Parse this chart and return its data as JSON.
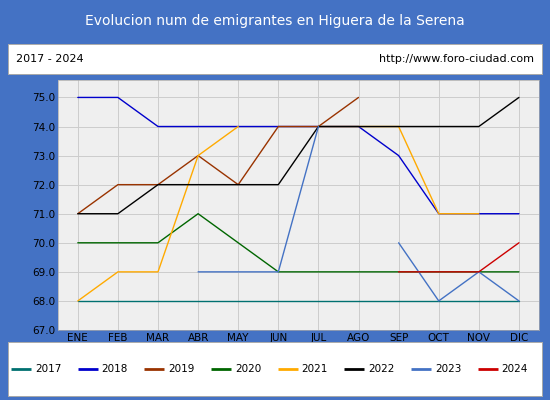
{
  "title": "Evolucion num de emigrantes en Higuera de la Serena",
  "title_color": "#ffffff",
  "title_bg": "#4472c4",
  "subtitle_left": "2017 - 2024",
  "subtitle_right": "http://www.foro-ciudad.com",
  "months": [
    "ENE",
    "FEB",
    "MAR",
    "ABR",
    "MAY",
    "JUN",
    "JUL",
    "AGO",
    "SEP",
    "OCT",
    "NOV",
    "DIC"
  ],
  "ylim": [
    67.0,
    75.6
  ],
  "yticks": [
    67.0,
    68.0,
    69.0,
    70.0,
    71.0,
    72.0,
    73.0,
    74.0,
    75.0
  ],
  "series": [
    {
      "label": "2017",
      "color": "#007070",
      "data": [
        68.0,
        68.0,
        68.0,
        68.0,
        68.0,
        68.0,
        68.0,
        68.0,
        68.0,
        68.0,
        68.0,
        68.0
      ]
    },
    {
      "label": "2018",
      "color": "#0000cc",
      "data": [
        75.0,
        75.0,
        74.0,
        74.0,
        74.0,
        74.0,
        74.0,
        74.0,
        73.0,
        71.0,
        71.0,
        71.0
      ]
    },
    {
      "label": "2019",
      "color": "#993300",
      "data": [
        71.0,
        72.0,
        72.0,
        73.0,
        72.0,
        74.0,
        74.0,
        75.0,
        null,
        null,
        null,
        null
      ]
    },
    {
      "label": "2020",
      "color": "#006600",
      "data": [
        70.0,
        70.0,
        70.0,
        71.0,
        70.0,
        69.0,
        69.0,
        69.0,
        69.0,
        69.0,
        69.0,
        69.0
      ]
    },
    {
      "label": "2021",
      "color": "#ffaa00",
      "data": [
        68.0,
        69.0,
        69.0,
        73.0,
        74.0,
        null,
        74.0,
        74.0,
        74.0,
        71.0,
        71.0,
        null
      ]
    },
    {
      "label": "2022",
      "color": "#000000",
      "data": [
        71.0,
        71.0,
        72.0,
        72.0,
        72.0,
        72.0,
        74.0,
        74.0,
        74.0,
        74.0,
        74.0,
        75.0
      ]
    },
    {
      "label": "2023",
      "color": "#4472c4",
      "data": [
        null,
        null,
        null,
        69.0,
        69.0,
        69.0,
        74.0,
        null,
        70.0,
        68.0,
        69.0,
        68.0
      ]
    },
    {
      "label": "2024",
      "color": "#cc0000",
      "data": [
        null,
        null,
        null,
        null,
        null,
        null,
        null,
        null,
        69.0,
        69.0,
        69.0,
        70.0
      ]
    }
  ],
  "bg_outer": "#4472c4",
  "bg_plot": "#efefef",
  "grid_color": "#cccccc",
  "figure_width": 5.5,
  "figure_height": 4.0,
  "dpi": 100
}
